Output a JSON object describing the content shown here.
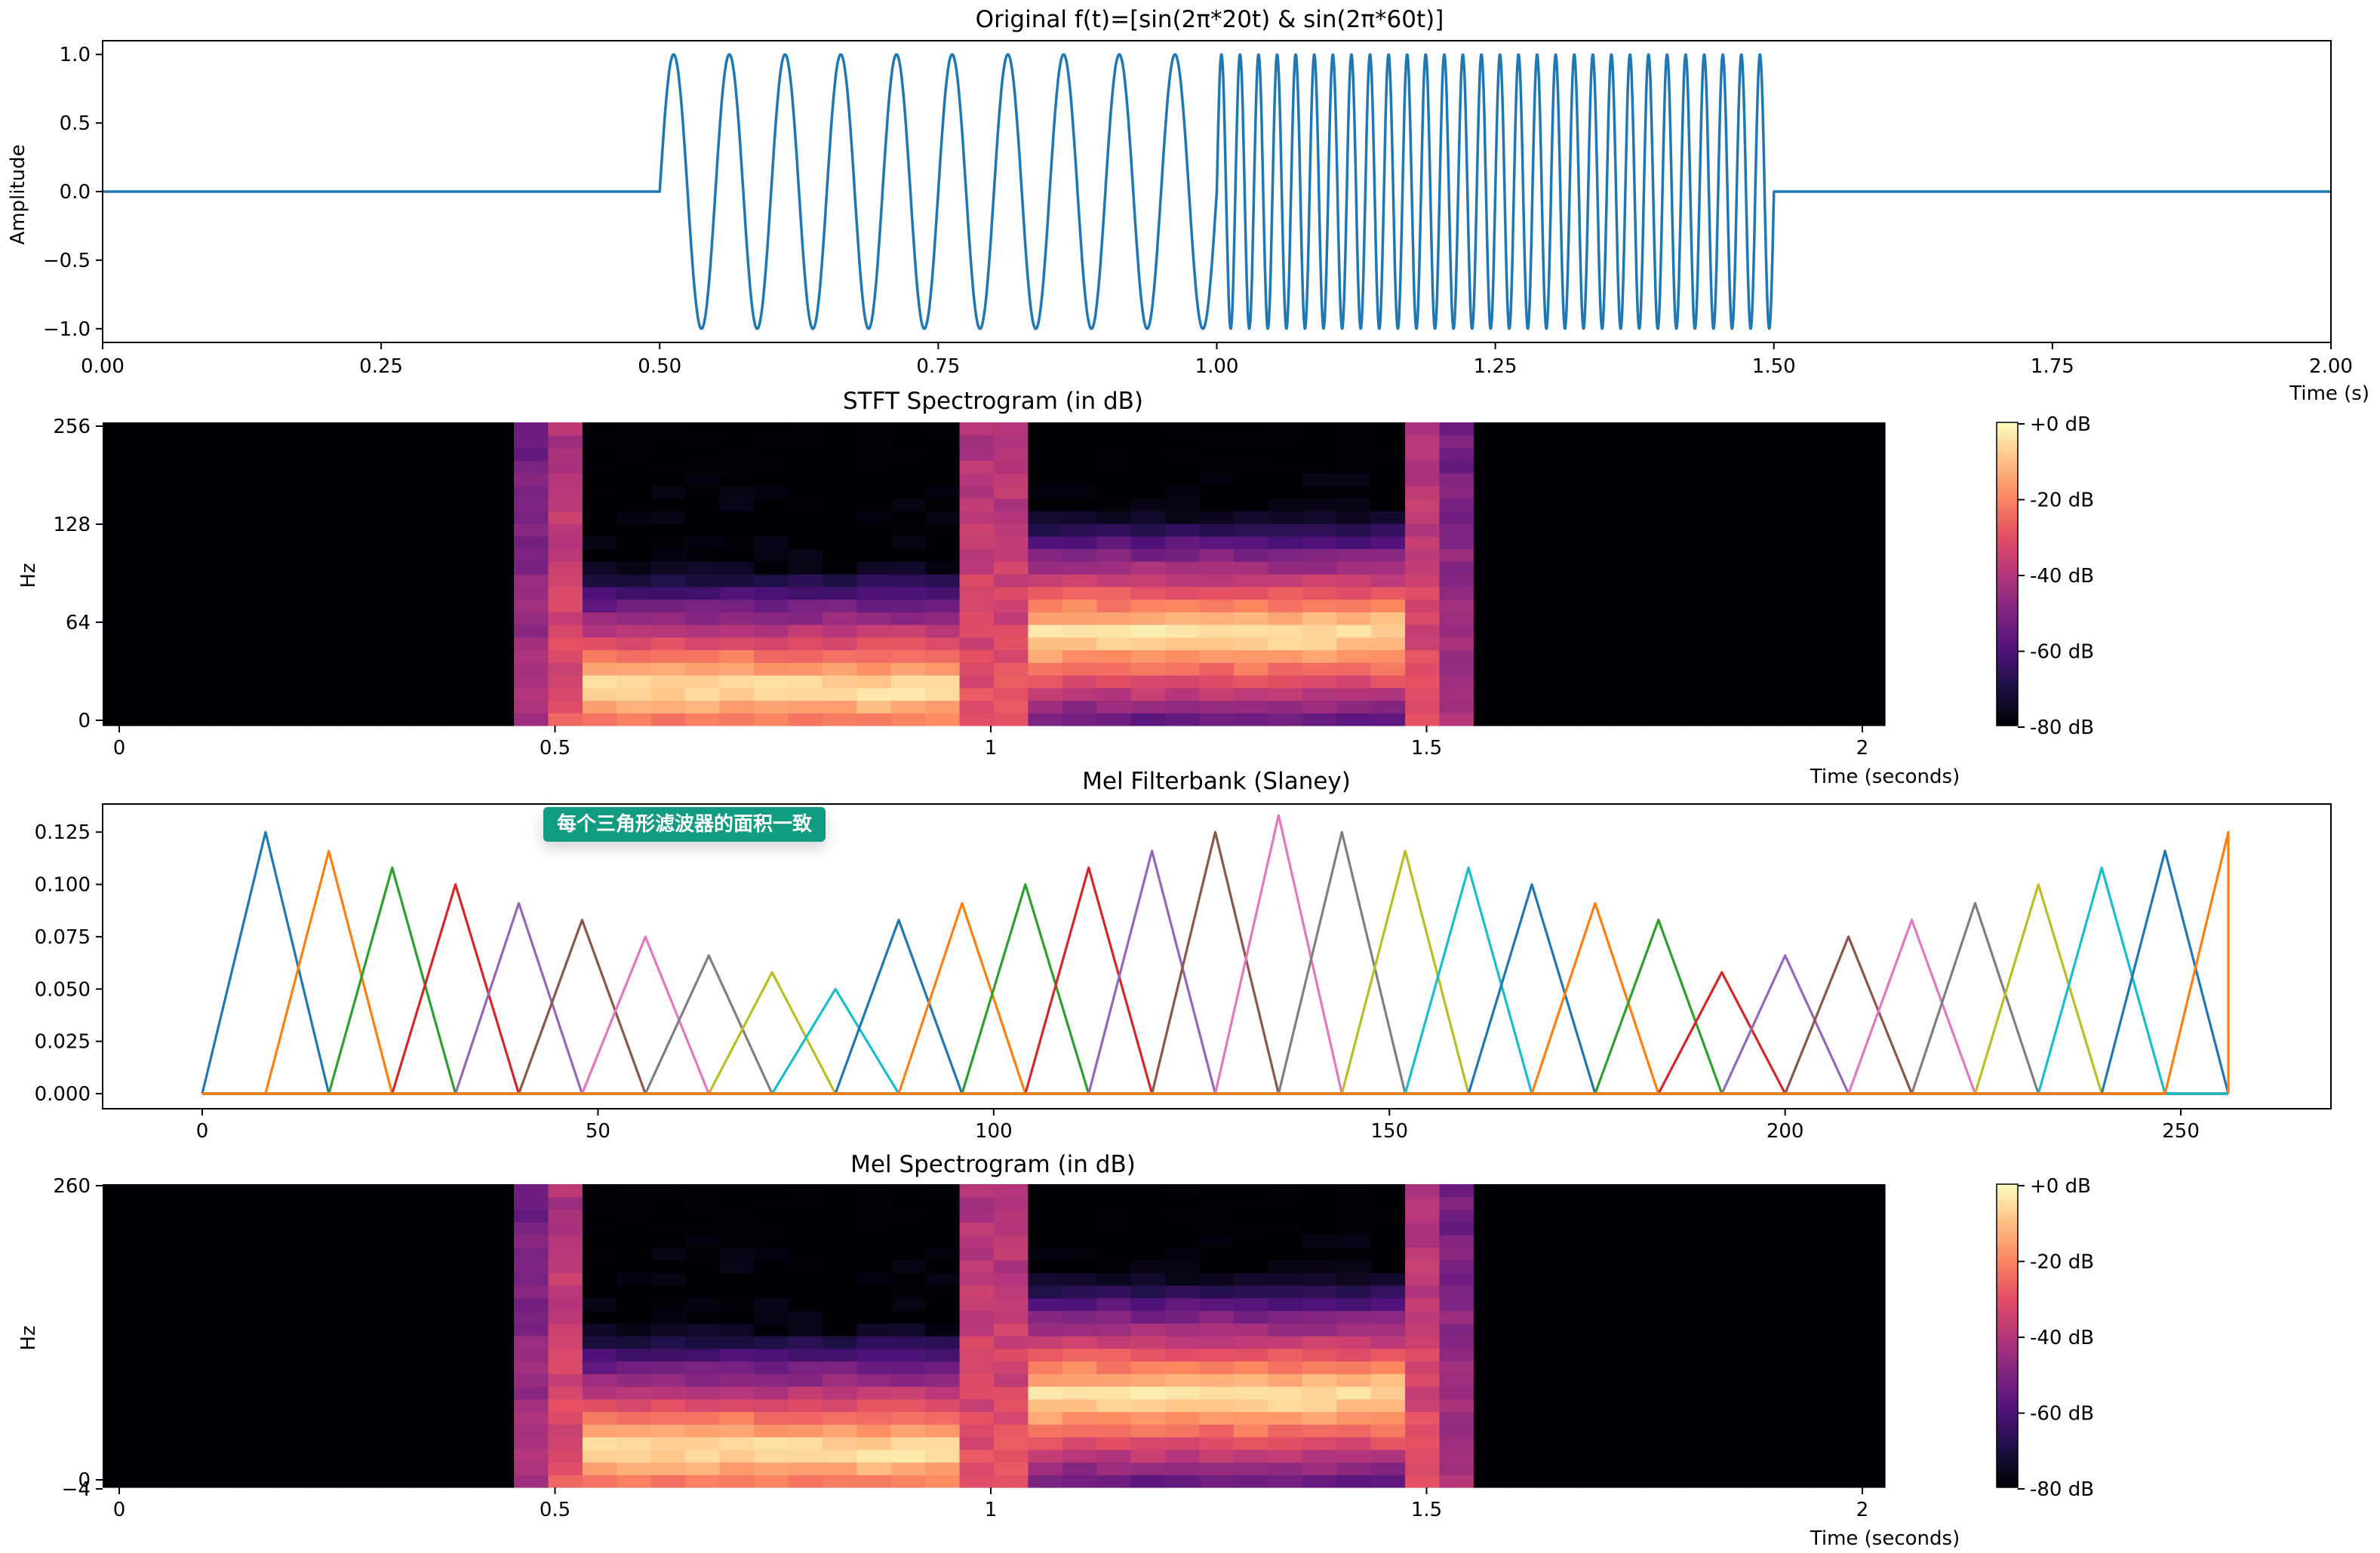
{
  "annotation": "每个三角形滤波器的面积一致",
  "chart_data": [
    {
      "type": "line",
      "title": "Original f(t)=[sin(2π*20t) & sin(2π*60t)]",
      "xlabel": "Time (s)",
      "ylabel": "Amplitude",
      "xlim": [
        0,
        2
      ],
      "ylim": [
        -1.1,
        1.1
      ],
      "xticks": [
        "0.00",
        "0.25",
        "0.50",
        "0.75",
        "1.00",
        "1.25",
        "1.50",
        "1.75",
        "2.00"
      ],
      "yticks": [
        "1.0",
        "0.5",
        "0.0",
        "−0.5",
        "−1.0"
      ],
      "segments": [
        {
          "t_start": 0,
          "t_end": 0.5,
          "frequency_hz": 0
        },
        {
          "t_start": 0.5,
          "t_end": 1.0,
          "frequency_hz": 20
        },
        {
          "t_start": 1.0,
          "t_end": 1.5,
          "frequency_hz": 60
        },
        {
          "t_start": 1.5,
          "t_end": 2.0,
          "frequency_hz": 0
        }
      ],
      "color": "#1f77b4"
    },
    {
      "type": "heatmap",
      "title": "STFT Spectrogram (in dB)",
      "xlabel": "Time (seconds)",
      "ylabel": "Hz",
      "xticks": [
        "0",
        "0.5",
        "1",
        "1.5",
        "2"
      ],
      "yticks": [
        "256",
        "128",
        "64",
        "0"
      ],
      "colorbar_ticks": [
        "+0 dB",
        "-20 dB",
        "-40 dB",
        "-60 dB",
        "-80 dB"
      ],
      "colormap": "magma",
      "db_range": [
        -80,
        0
      ],
      "dominant_bands": [
        {
          "t_start": 0.5,
          "t_end": 1.0,
          "frequency_hz": 20
        },
        {
          "t_start": 1.0,
          "t_end": 1.5,
          "frequency_hz": 60
        }
      ]
    },
    {
      "type": "line",
      "title": "Mel Filterbank (Slaney)",
      "xlim": [
        0,
        256
      ],
      "ylim": [
        0,
        0.133
      ],
      "xticks": [
        "0",
        "50",
        "100",
        "150",
        "200",
        "250"
      ],
      "yticks": [
        "0.125",
        "0.100",
        "0.075",
        "0.050",
        "0.025",
        "0.000"
      ],
      "filters": [
        {
          "left": 0,
          "center": 8,
          "right": 16,
          "peak": 0.125
        },
        {
          "left": 8,
          "center": 16,
          "right": 24,
          "peak": 0.116
        },
        {
          "left": 16,
          "center": 24,
          "right": 32,
          "peak": 0.108
        },
        {
          "left": 24,
          "center": 32,
          "right": 40,
          "peak": 0.1
        },
        {
          "left": 32,
          "center": 40,
          "right": 48,
          "peak": 0.091
        },
        {
          "left": 40,
          "center": 48,
          "right": 56,
          "peak": 0.083
        },
        {
          "left": 48,
          "center": 56,
          "right": 64,
          "peak": 0.075
        },
        {
          "left": 56,
          "center": 64,
          "right": 72,
          "peak": 0.066
        },
        {
          "left": 64,
          "center": 72,
          "right": 80,
          "peak": 0.058
        },
        {
          "left": 72,
          "center": 80,
          "right": 88,
          "peak": 0.05
        },
        {
          "left": 80,
          "center": 88,
          "right": 96,
          "peak": 0.083
        },
        {
          "left": 88,
          "center": 96,
          "right": 104,
          "peak": 0.091
        },
        {
          "left": 96,
          "center": 104,
          "right": 112,
          "peak": 0.1
        },
        {
          "left": 104,
          "center": 112,
          "right": 120,
          "peak": 0.108
        },
        {
          "left": 112,
          "center": 120,
          "right": 128,
          "peak": 0.116
        },
        {
          "left": 120,
          "center": 128,
          "right": 136,
          "peak": 0.125
        },
        {
          "left": 128,
          "center": 136,
          "right": 144,
          "peak": 0.133
        },
        {
          "left": 136,
          "center": 144,
          "right": 152,
          "peak": 0.125
        },
        {
          "left": 144,
          "center": 152,
          "right": 160,
          "peak": 0.116
        },
        {
          "left": 152,
          "center": 160,
          "right": 168,
          "peak": 0.108
        },
        {
          "left": 160,
          "center": 168,
          "right": 176,
          "peak": 0.1
        },
        {
          "left": 168,
          "center": 176,
          "right": 184,
          "peak": 0.091
        },
        {
          "left": 176,
          "center": 184,
          "right": 192,
          "peak": 0.083
        },
        {
          "left": 184,
          "center": 192,
          "right": 200,
          "peak": 0.058
        },
        {
          "left": 192,
          "center": 200,
          "right": 208,
          "peak": 0.066
        },
        {
          "left": 200,
          "center": 208,
          "right": 216,
          "peak": 0.075
        },
        {
          "left": 208,
          "center": 216,
          "right": 224,
          "peak": 0.083
        },
        {
          "left": 216,
          "center": 224,
          "right": 232,
          "peak": 0.091
        },
        {
          "left": 224,
          "center": 232,
          "right": 240,
          "peak": 0.1
        },
        {
          "left": 232,
          "center": 240,
          "right": 248,
          "peak": 0.108
        },
        {
          "left": 240,
          "center": 248,
          "right": 256,
          "peak": 0.116
        },
        {
          "left": 248,
          "center": 256,
          "right": 256,
          "peak": 0.125
        }
      ],
      "colors": [
        "#1f77b4",
        "#ff7f0e",
        "#2ca02c",
        "#d62728",
        "#9467bd",
        "#8c564b",
        "#e377c2",
        "#7f7f7f",
        "#bcbd22",
        "#17becf"
      ]
    },
    {
      "type": "heatmap",
      "title": "Mel Spectrogram (in dB)",
      "xlabel": "Time (seconds)",
      "ylabel": "Hz",
      "xticks": [
        "0",
        "0.5",
        "1",
        "1.5",
        "2"
      ],
      "yticks": [
        "260",
        "0",
        "−4"
      ],
      "colorbar_ticks": [
        "+0 dB",
        "-20 dB",
        "-40 dB",
        "-60 dB",
        "-80 dB"
      ],
      "colormap": "magma",
      "db_range": [
        -80,
        0
      ]
    }
  ]
}
